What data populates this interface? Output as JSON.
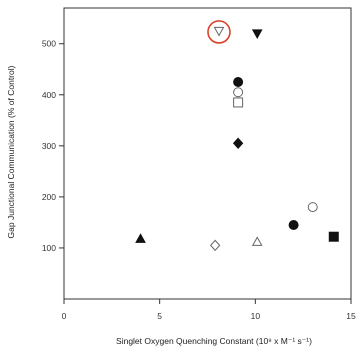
{
  "chart_data": {
    "type": "scatter",
    "title": "",
    "xlabel": "Singlet Oxygen Quenching Constant (10⁹ x M⁻¹ s⁻¹)",
    "ylabel": "Gap Junctional Communication (% of Control)",
    "xlim": [
      0,
      15
    ],
    "ylim": [
      0,
      570
    ],
    "x_ticks": [
      "0",
      "5",
      "10",
      "15"
    ],
    "y_ticks": [
      "100",
      "200",
      "300",
      "400",
      "500"
    ],
    "grid": false,
    "points": [
      {
        "x": 4.0,
        "y": 118,
        "marker": "triangle-up-filled"
      },
      {
        "x": 7.9,
        "y": 105,
        "marker": "diamond-open"
      },
      {
        "x": 8.1,
        "y": 525,
        "marker": "triangle-down-open",
        "highlighted": true
      },
      {
        "x": 9.1,
        "y": 425,
        "marker": "circle-filled"
      },
      {
        "x": 9.1,
        "y": 405,
        "marker": "circle-open"
      },
      {
        "x": 9.1,
        "y": 385,
        "marker": "square-open"
      },
      {
        "x": 9.1,
        "y": 305,
        "marker": "diamond-filled"
      },
      {
        "x": 10.1,
        "y": 520,
        "marker": "triangle-down-filled"
      },
      {
        "x": 10.1,
        "y": 112,
        "marker": "triangle-up-open"
      },
      {
        "x": 12.0,
        "y": 145,
        "marker": "circle-filled"
      },
      {
        "x": 13.0,
        "y": 180,
        "marker": "circle-open"
      },
      {
        "x": 14.1,
        "y": 122,
        "marker": "square-filled"
      }
    ],
    "highlight_color": "#d9442b",
    "marker_color": "#111111"
  }
}
